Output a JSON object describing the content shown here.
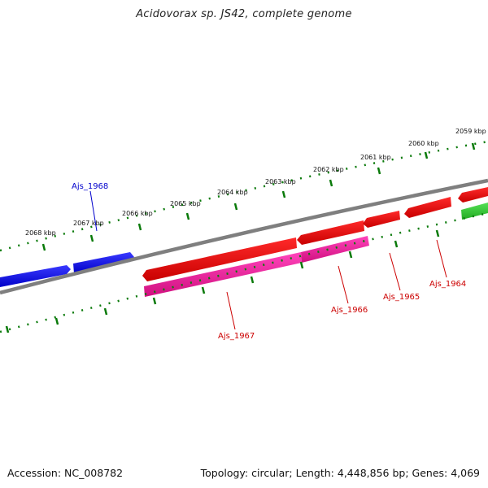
{
  "title": "Acidovorax sp. JS42, complete genome",
  "footer": {
    "accession": "Accession: NC_008782",
    "summary": "Topology: circular; Length: 4,448,856 bp; Genes: 4,069"
  },
  "colors": {
    "backbone": "#7f7f7f",
    "tick": "#0a7a0a",
    "forward_gene": "#0000ee",
    "reverse_gene": "#ee0000",
    "reverse_gene_2": "#ee1199",
    "other_gene": "#33cc33",
    "label_forward": "#0000cc",
    "label_reverse": "#cc0000"
  },
  "ticks": [
    "2059 kbp",
    "2060 kbp",
    "2061 kbp",
    "2062 kbp",
    "2063 kbp",
    "2064 kbp",
    "2065 kbp",
    "2066 kbp",
    "2067 kbp",
    "2068 kbp"
  ],
  "genes": [
    {
      "name": "Ajs_1968",
      "color": "forward_gene",
      "labeled": true
    },
    {
      "name": "Ajs_1967",
      "color": "reverse_gene",
      "labeled": true
    },
    {
      "name": "Ajs_1966",
      "color": "reverse_gene",
      "labeled": true
    },
    {
      "name": "Ajs_1965",
      "color": "reverse_gene",
      "labeled": true
    },
    {
      "name": "Ajs_1964",
      "color": "reverse_gene",
      "labeled": true
    }
  ]
}
